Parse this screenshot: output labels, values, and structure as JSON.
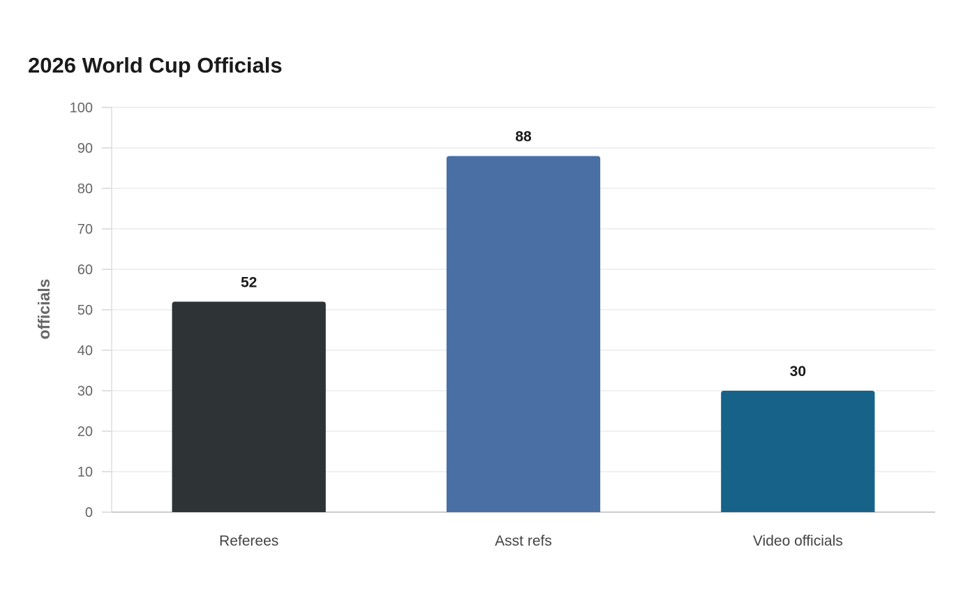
{
  "chart_data": {
    "type": "bar",
    "title": "2026 World Cup Officials",
    "xlabel": "",
    "ylabel": "officials",
    "categories": [
      "Referees",
      "Asst refs",
      "Video officials"
    ],
    "values": [
      52,
      88,
      30
    ],
    "colors": [
      "#2e3436",
      "#4a6fa5",
      "#176289"
    ],
    "ylim": [
      0,
      100
    ],
    "yticks": [
      0,
      10,
      20,
      30,
      40,
      50,
      60,
      70,
      80,
      90,
      100
    ],
    "grid": true,
    "legend": "none"
  }
}
